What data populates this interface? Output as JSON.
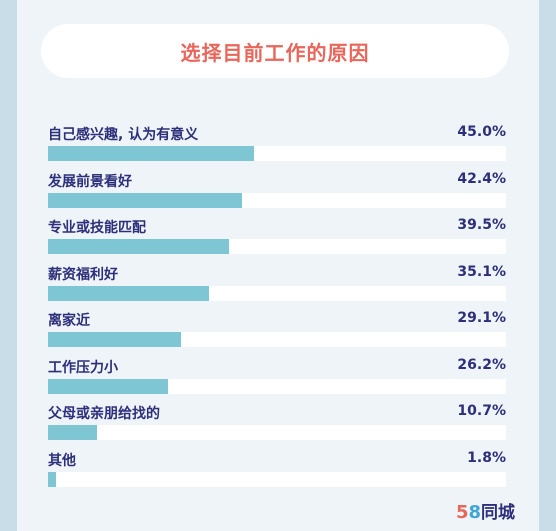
{
  "chart_data": {
    "type": "bar",
    "orientation": "horizontal",
    "title": "选择目前工作的原因",
    "categories": [
      "自己感兴趣, 认为有意义",
      "发展前景看好",
      "专业或技能匹配",
      "薪资福利好",
      "离家近",
      "工作压力小",
      "父母或亲朋给找的",
      "其他"
    ],
    "values": [
      45.0,
      42.4,
      39.5,
      35.1,
      29.1,
      26.2,
      10.7,
      1.8
    ],
    "value_labels": [
      "45.0%",
      "42.4%",
      "39.5%",
      "35.1%",
      "29.1%",
      "26.2%",
      "10.7%",
      "1.8%"
    ],
    "xlim": [
      0,
      100
    ],
    "grid": false,
    "legend": "none",
    "colors": {
      "bar": "#7ec6d4",
      "track": "#ffffff",
      "title": "#e8665a",
      "text": "#2d2f7a",
      "background": "#c9dde9"
    }
  },
  "brand": {
    "logo_num_five": "5",
    "logo_num_eight": "8",
    "logo_text": "同城"
  }
}
